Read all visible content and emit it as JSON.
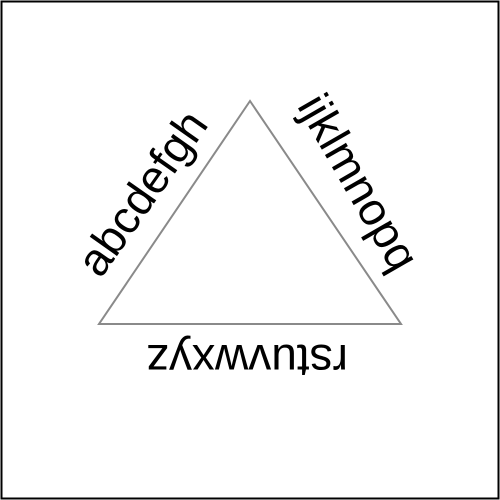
{
  "diagram": {
    "left_side_text": "abcdefgh",
    "right_side_text": "ijklmnopq",
    "bottom_side_text": "rstuvwxyz"
  },
  "colors": {
    "frame": "#000000",
    "triangle_stroke": "#8a8a8a",
    "text": "#000000",
    "background": "#ffffff"
  }
}
